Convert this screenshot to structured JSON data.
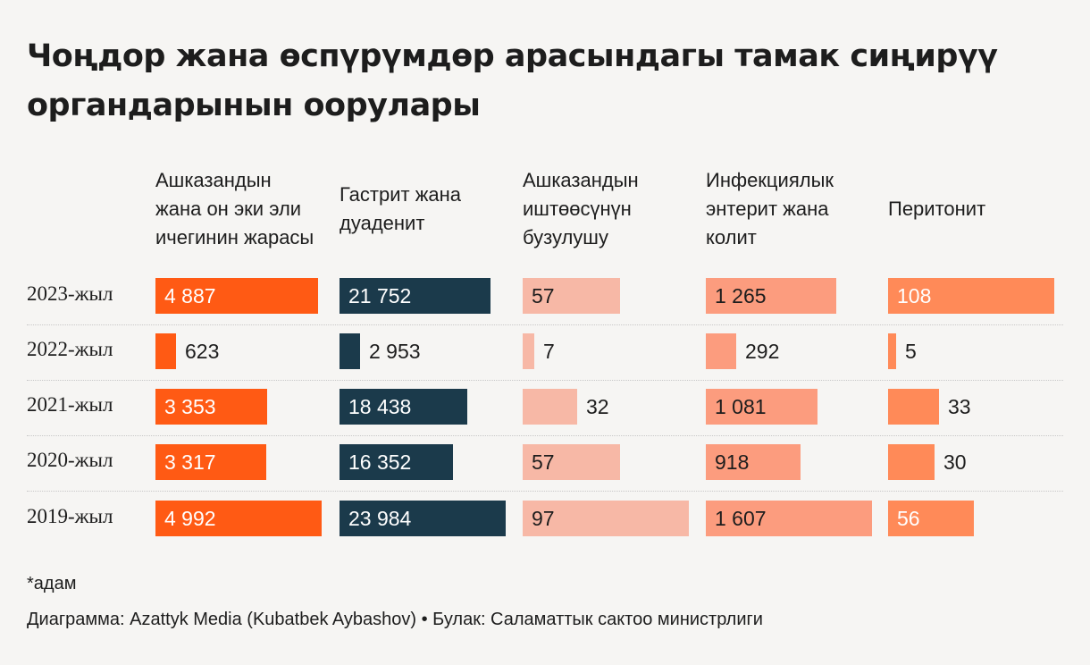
{
  "title": "Чоңдор жана өспүрүмдөр арасындагы тамак сиңирүү органдарынын оорулары",
  "chart_data": {
    "type": "table",
    "title": "Чоңдор жана өспүрүмдөр арасындагы тамак сиңирүү органдарынын оорулары",
    "categories": [
      "2023-жыл",
      "2022-жыл",
      "2021-жыл",
      "2020-жыл",
      "2019-жыл"
    ],
    "series": [
      {
        "name": "Ашказандын жана он эки эли ичегинин жарасы",
        "color": "#ff5a14",
        "values": [
          4887,
          623,
          3353,
          3317,
          4992
        ],
        "labels": [
          "4 887",
          "623",
          "3 353",
          "3 317",
          "4 992"
        ]
      },
      {
        "name": "Гастрит жана дуаденит",
        "color": "#1b3a4b",
        "values": [
          21752,
          2953,
          18438,
          16352,
          23984
        ],
        "labels": [
          "21 752",
          "2 953",
          "18 438",
          "16 352",
          "23 984"
        ]
      },
      {
        "name": "Ашказандын иштөөсүнүн бузулушу",
        "color": "#f7b8a6",
        "values": [
          57,
          7,
          32,
          57,
          97
        ],
        "labels": [
          "57",
          "7",
          "32",
          "57",
          "97"
        ]
      },
      {
        "name": "Инфекциялык энтерит жана колит",
        "color": "#fc9c7e",
        "values": [
          1265,
          292,
          1081,
          918,
          1607
        ],
        "labels": [
          "1 265",
          "292",
          "1 081",
          "918",
          "1 607"
        ]
      },
      {
        "name": "Перитонит",
        "color": "#ff8a58",
        "values": [
          108,
          5,
          33,
          30,
          56
        ],
        "labels": [
          "108",
          "5",
          "33",
          "30",
          "56"
        ]
      }
    ]
  },
  "note": "*адам",
  "credit": "Диаграмма: Azattyk Media (Kubatbek Aybashov) • Булак: Саламаттык сактоо министрлиги"
}
